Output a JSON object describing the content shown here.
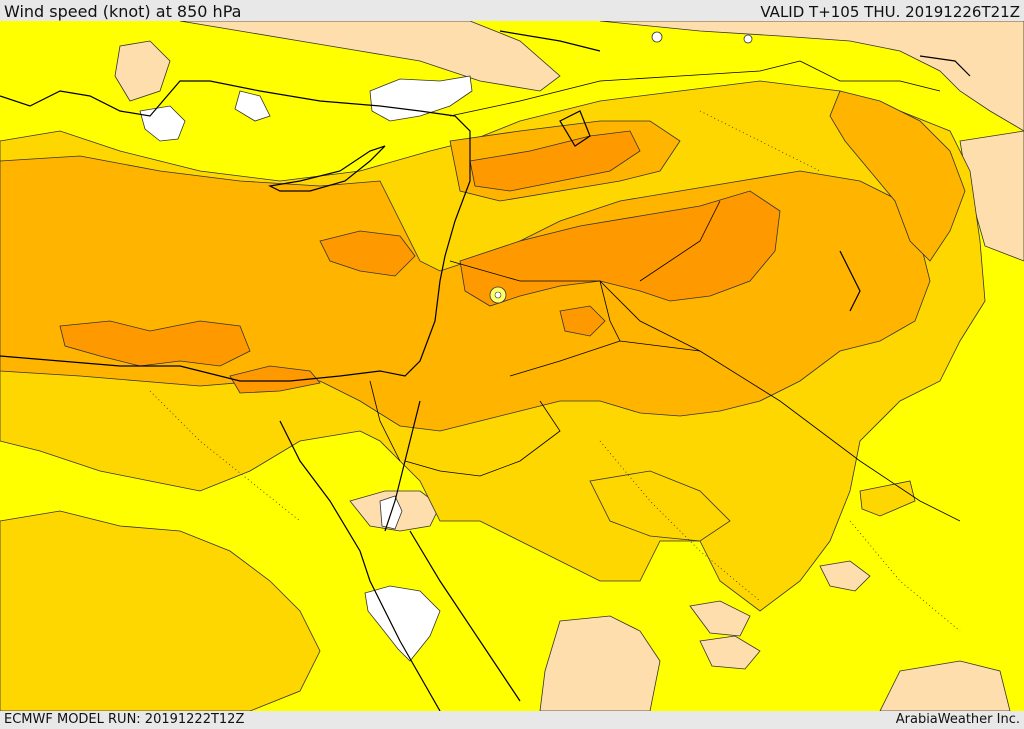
{
  "header": {
    "title": "Wind speed (knot) at 850 hPa",
    "valid_time": "VALID T+105 THU. 20191226T21Z"
  },
  "footer": {
    "model_run": "ECMWF MODEL RUN: 20191222T12Z",
    "credit": "ArabiaWeather Inc."
  },
  "map": {
    "field": "wind speed at 850 hPa",
    "colors": {
      "calm": "#ffffff",
      "light": "#ffdead",
      "moderate": "#ffff00",
      "fresh": "#ffd700",
      "strong": "#ffb400",
      "very_strong": "#ff9900",
      "contour": "#333333",
      "coast": "#000000"
    }
  }
}
